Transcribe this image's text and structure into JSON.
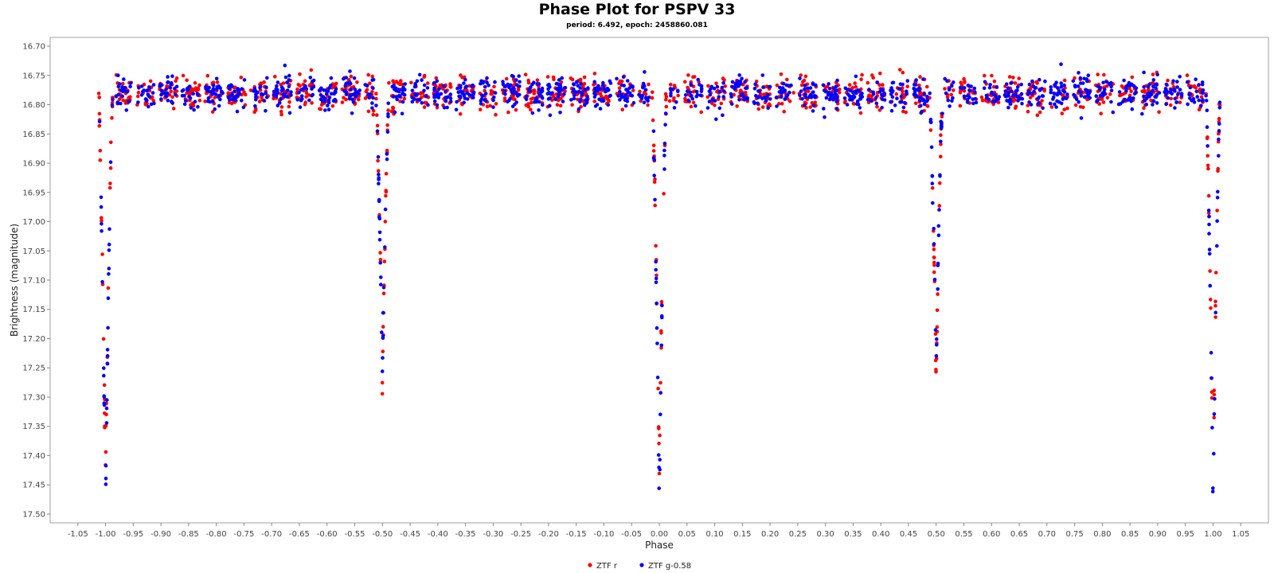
{
  "chart_data": {
    "type": "scatter",
    "title": "Phase Plot for PSPV 33",
    "subtitle": "period: 6.492, epoch: 2458860.081",
    "xlabel": "Phase",
    "ylabel": "Brightness (magnitude)",
    "xlim": [
      -1.1,
      1.1
    ],
    "ylim": [
      16.685,
      17.515
    ],
    "y_inverted": true,
    "x_ticks": [
      "-1.05",
      "-1.00",
      "-0.95",
      "-0.90",
      "-0.85",
      "-0.80",
      "-0.75",
      "-0.70",
      "-0.65",
      "-0.60",
      "-0.55",
      "-0.50",
      "-0.45",
      "-0.40",
      "-0.35",
      "-0.30",
      "-0.25",
      "-0.20",
      "-0.15",
      "-0.10",
      "-0.05",
      "0.00",
      "0.05",
      "0.10",
      "0.15",
      "0.20",
      "0.25",
      "0.30",
      "0.35",
      "0.40",
      "0.45",
      "0.50",
      "0.55",
      "0.60",
      "0.65",
      "0.70",
      "0.75",
      "0.80",
      "0.85",
      "0.90",
      "0.95",
      "1.00",
      "1.05"
    ],
    "y_ticks": [
      "16.70",
      "16.75",
      "16.80",
      "16.85",
      "16.90",
      "16.95",
      "17.00",
      "17.05",
      "17.10",
      "17.15",
      "17.20",
      "17.25",
      "17.30",
      "17.35",
      "17.40",
      "17.45",
      "17.50"
    ],
    "grid": false,
    "legend_position": "bottom-center",
    "series": [
      {
        "name": "ZTF r",
        "color": "#ff0000",
        "model": {
          "baseline_mag": 16.78,
          "scatter": 0.025,
          "primary_eclipse": {
            "phase": 0.0,
            "depth_mag": 17.43
          },
          "secondary_eclipse": {
            "phase": 0.5,
            "depth_mag": 17.27
          }
        }
      },
      {
        "name": "ZTF g-0.58",
        "color": "#0000ff",
        "model": {
          "baseline_mag": 16.78,
          "scatter": 0.025,
          "primary_eclipse": {
            "phase": 0.0,
            "depth_mag": 17.48
          },
          "secondary_eclipse": {
            "phase": 0.5,
            "depth_mag": 17.25
          }
        }
      }
    ]
  }
}
